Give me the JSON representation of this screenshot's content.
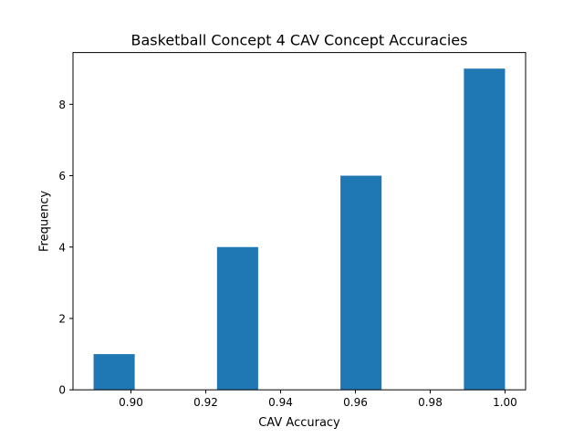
{
  "chart_data": {
    "type": "bar",
    "title": "Basketball Concept 4 CAV Concept Accuracies",
    "xlabel": "CAV Accuracy",
    "ylabel": "Frequency",
    "xlim": [
      0.8845,
      1.0055
    ],
    "ylim": [
      0,
      9.45
    ],
    "bar_color": "#1f77b4",
    "bins": [
      {
        "x0": 0.89,
        "x1": 0.901,
        "value": 1
      },
      {
        "x0": 0.901,
        "x2": 0.912,
        "x1": 0.912,
        "value": 0
      },
      {
        "x0": 0.912,
        "x1": 0.923,
        "value": 0
      },
      {
        "x0": 0.923,
        "x1": 0.934,
        "value": 4
      },
      {
        "x0": 0.934,
        "x1": 0.945,
        "value": 0
      },
      {
        "x0": 0.945,
        "x1": 0.956,
        "value": 0
      },
      {
        "x0": 0.956,
        "x1": 0.967,
        "value": 6
      },
      {
        "x0": 0.967,
        "x1": 0.978,
        "value": 0
      },
      {
        "x0": 0.978,
        "x1": 0.989,
        "value": 0
      },
      {
        "x0": 0.989,
        "x1": 1.0,
        "value": 9
      }
    ],
    "xticks": [
      {
        "value": 0.9,
        "label": "0.90"
      },
      {
        "value": 0.92,
        "label": "0.92"
      },
      {
        "value": 0.94,
        "label": "0.94"
      },
      {
        "value": 0.96,
        "label": "0.96"
      },
      {
        "value": 0.98,
        "label": "0.98"
      },
      {
        "value": 1.0,
        "label": "1.00"
      }
    ],
    "yticks": [
      {
        "value": 0,
        "label": "0"
      },
      {
        "value": 2,
        "label": "2"
      },
      {
        "value": 4,
        "label": "4"
      },
      {
        "value": 6,
        "label": "6"
      },
      {
        "value": 8,
        "label": "8"
      }
    ],
    "grid": false,
    "legend": "none"
  }
}
